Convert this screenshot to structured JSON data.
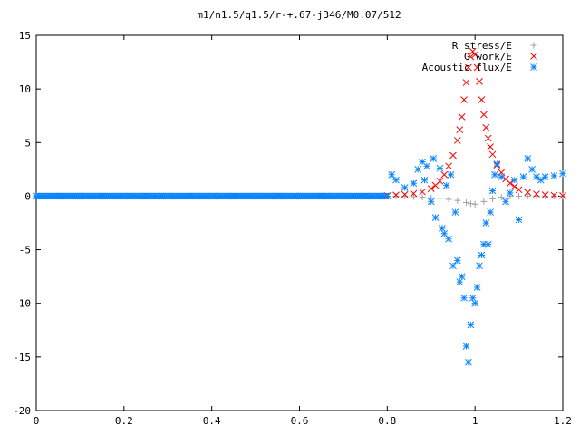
{
  "chart_data": {
    "type": "scatter",
    "title": "m1/n1.5/q1.5/r-+.67-j346/M0.07/512",
    "xlabel": "",
    "ylabel": "",
    "xlim": [
      0,
      1.2
    ],
    "ylim": [
      -20,
      15
    ],
    "x_ticks": [
      {
        "value": 0,
        "label": "0"
      },
      {
        "value": 0.2,
        "label": "0.2"
      },
      {
        "value": 0.4,
        "label": "0.4"
      },
      {
        "value": 0.6,
        "label": "0.6"
      },
      {
        "value": 0.8,
        "label": "0.8"
      },
      {
        "value": 1.0,
        "label": "1"
      },
      {
        "value": 1.2,
        "label": "1.2"
      }
    ],
    "y_ticks": [
      {
        "value": 15,
        "label": "15"
      },
      {
        "value": 10,
        "label": "10"
      },
      {
        "value": 5,
        "label": "5"
      },
      {
        "value": 0,
        "label": "0"
      },
      {
        "value": -5,
        "label": "-5"
      },
      {
        "value": -10,
        "label": "-10"
      },
      {
        "value": -15,
        "label": "-15"
      },
      {
        "value": -20,
        "label": "-20"
      }
    ],
    "grid": false,
    "legend_position": "top-right",
    "series": [
      {
        "name": "R stress/E",
        "marker": "plus",
        "color": "#a0a0a0",
        "x": [
          0.0,
          0.1,
          0.2,
          0.3,
          0.4,
          0.5,
          0.6,
          0.7,
          0.8,
          0.82,
          0.84,
          0.86,
          0.88,
          0.9,
          0.92,
          0.94,
          0.96,
          0.98,
          0.99,
          1.0,
          1.02,
          1.04,
          1.06,
          1.08,
          1.1,
          1.12,
          1.14,
          1.16,
          1.18,
          1.2
        ],
        "y": [
          0,
          0,
          0,
          0,
          0,
          0,
          0,
          0,
          0,
          0,
          0,
          -0.05,
          -0.1,
          -0.15,
          -0.2,
          -0.3,
          -0.4,
          -0.6,
          -0.7,
          -0.75,
          -0.5,
          -0.25,
          -0.1,
          0,
          0,
          0,
          0,
          0,
          0,
          0
        ]
      },
      {
        "name": "G work/E",
        "marker": "cross",
        "color": "#ff0000",
        "x": [
          0.8,
          0.82,
          0.84,
          0.86,
          0.88,
          0.9,
          0.91,
          0.92,
          0.93,
          0.94,
          0.95,
          0.96,
          0.965,
          0.97,
          0.975,
          0.98,
          0.985,
          0.99,
          0.995,
          1.0,
          1.005,
          1.01,
          1.015,
          1.02,
          1.025,
          1.03,
          1.035,
          1.04,
          1.05,
          1.06,
          1.07,
          1.08,
          1.09,
          1.1,
          1.12,
          1.14,
          1.16,
          1.18,
          1.2
        ],
        "y": [
          0.05,
          0.1,
          0.15,
          0.25,
          0.4,
          0.7,
          1.0,
          1.4,
          2.0,
          2.8,
          3.8,
          5.2,
          6.2,
          7.4,
          9.0,
          10.6,
          12.0,
          13.0,
          13.5,
          13.2,
          12.0,
          10.7,
          9.0,
          7.6,
          6.4,
          5.4,
          4.6,
          3.9,
          2.9,
          2.2,
          1.6,
          1.2,
          0.9,
          0.6,
          0.35,
          0.2,
          0.12,
          0.08,
          0.05
        ]
      },
      {
        "name": "Acoustic flux/E",
        "marker": "star",
        "color": "#0a84ff",
        "x": [
          0.0,
          0.05,
          0.1,
          0.15,
          0.2,
          0.25,
          0.3,
          0.35,
          0.4,
          0.45,
          0.5,
          0.55,
          0.6,
          0.65,
          0.7,
          0.75,
          0.8,
          0.81,
          0.82,
          0.84,
          0.86,
          0.87,
          0.88,
          0.885,
          0.89,
          0.9,
          0.905,
          0.91,
          0.92,
          0.925,
          0.93,
          0.935,
          0.94,
          0.945,
          0.95,
          0.955,
          0.96,
          0.965,
          0.97,
          0.975,
          0.98,
          0.985,
          0.99,
          0.995,
          1.0,
          1.005,
          1.01,
          1.015,
          1.02,
          1.025,
          1.03,
          1.035,
          1.04,
          1.045,
          1.05,
          1.06,
          1.07,
          1.08,
          1.09,
          1.1,
          1.11,
          1.12,
          1.13,
          1.14,
          1.15,
          1.16,
          1.18,
          1.2
        ],
        "y": [
          0,
          0,
          0,
          0,
          0,
          0,
          0,
          0,
          0,
          0,
          0,
          0,
          0,
          0,
          0,
          0,
          0,
          2.0,
          1.5,
          0.8,
          1.2,
          2.5,
          3.2,
          1.5,
          2.8,
          -0.5,
          3.5,
          -2.0,
          2.6,
          -3.0,
          -3.5,
          1.0,
          -4.0,
          2.0,
          -6.5,
          -1.5,
          -6.0,
          -8.0,
          -7.5,
          -9.5,
          -14.0,
          -15.5,
          -12.0,
          -9.5,
          -10.0,
          -8.5,
          -6.5,
          -5.5,
          -4.5,
          -2.5,
          -4.5,
          -1.5,
          0.5,
          2.0,
          3.0,
          1.8,
          -0.5,
          0.3,
          1.5,
          -2.2,
          1.8,
          3.5,
          2.5,
          1.8,
          1.5,
          1.8,
          1.9,
          2.1
        ]
      }
    ]
  }
}
